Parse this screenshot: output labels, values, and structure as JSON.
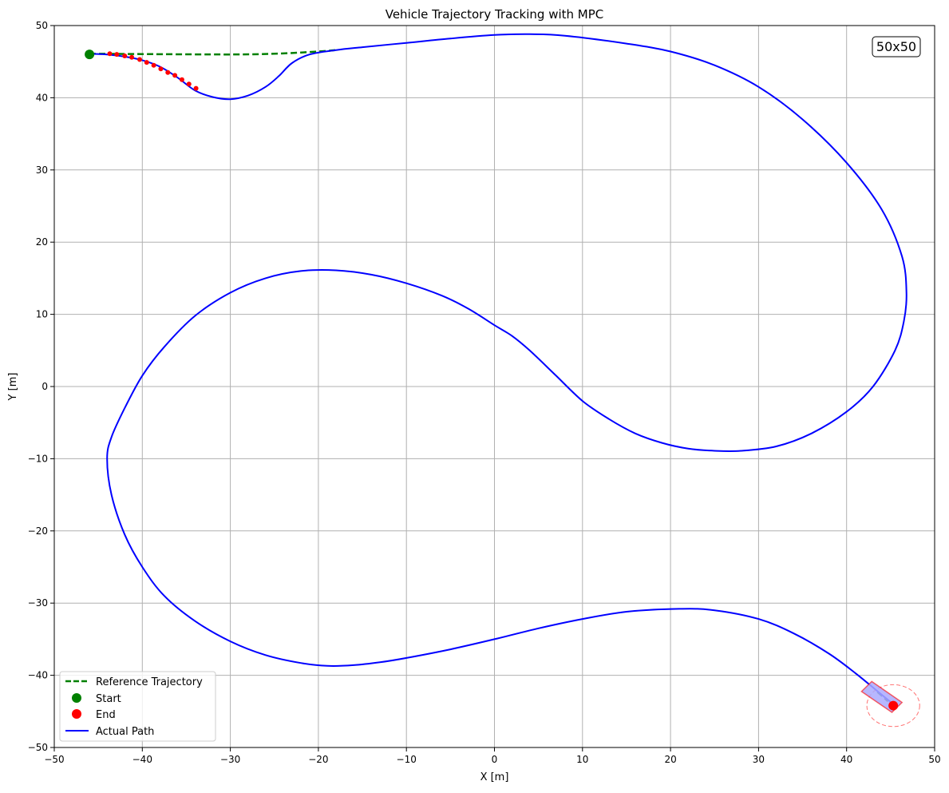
{
  "chart_data": {
    "type": "line",
    "title": "Vehicle Trajectory Tracking with MPC",
    "xlabel": "X [m]",
    "ylabel": "Y [m]",
    "xlim": [
      -50,
      50
    ],
    "ylim": [
      -50,
      50
    ],
    "x_ticks": [
      -50,
      -40,
      -30,
      -20,
      -10,
      0,
      10,
      20,
      30,
      40,
      50
    ],
    "y_ticks": [
      -50,
      -40,
      -30,
      -20,
      -10,
      0,
      10,
      20,
      30,
      40,
      50
    ],
    "grid": true,
    "annotation": "50x50",
    "legend_position": "lower-left",
    "legend": [
      {
        "label": "Reference Trajectory",
        "style": "dashed-line",
        "color": "#008000"
      },
      {
        "label": "Start",
        "style": "marker",
        "color": "#008000"
      },
      {
        "label": "End",
        "style": "marker",
        "color": "#ff0000"
      },
      {
        "label": "Actual Path",
        "style": "line",
        "color": "#0000ff"
      }
    ],
    "series": [
      {
        "name": "Reference Trajectory",
        "color": "#008000",
        "x": [
          -46,
          -40,
          -30,
          -25,
          -20,
          -18
        ],
        "y": [
          46.1,
          46.05,
          46.0,
          46.1,
          46.4,
          46.6
        ]
      },
      {
        "name": "Actual Path",
        "color": "#0000ff",
        "x": [
          -46,
          -44,
          -42,
          -40,
          -38,
          -36,
          -34,
          -32,
          -30,
          -28,
          -26,
          -24.5,
          -23,
          -21,
          -18,
          -15,
          -10,
          -5,
          0,
          4,
          8,
          15,
          20,
          25,
          30,
          35,
          40,
          44,
          46.3,
          46.8,
          46.5,
          45.5,
          43,
          40,
          36,
          32,
          28,
          25,
          22,
          19,
          16,
          13,
          10,
          7,
          4,
          2,
          0,
          -3,
          -6,
          -10,
          -14,
          -18,
          -22,
          -26,
          -30,
          -34,
          -37.5,
          -40,
          -42,
          -43.5,
          -44,
          -43.5,
          -42,
          -40,
          -37.5,
          -34,
          -30,
          -26,
          -22,
          -19,
          -16,
          -13,
          -10,
          -5,
          0,
          5,
          10,
          15,
          21,
          25,
          30,
          34,
          38,
          41,
          43.5,
          45.3
        ],
        "y": [
          46.1,
          46.0,
          45.7,
          45.2,
          44.3,
          42.8,
          41.0,
          40.1,
          39.8,
          40.3,
          41.5,
          43.0,
          44.8,
          46.0,
          46.6,
          47.0,
          47.6,
          48.2,
          48.7,
          48.8,
          48.6,
          47.5,
          46.4,
          44.5,
          41.5,
          37.0,
          31.0,
          24.5,
          18.0,
          13.0,
          9.0,
          5.0,
          0.0,
          -3.5,
          -6.5,
          -8.3,
          -8.9,
          -8.9,
          -8.6,
          -7.8,
          -6.5,
          -4.5,
          -2.0,
          1.5,
          5.0,
          7.0,
          8.5,
          10.8,
          12.6,
          14.3,
          15.5,
          16.1,
          16.0,
          15.0,
          13.0,
          9.8,
          5.5,
          1.5,
          -3.0,
          -7.0,
          -10.0,
          -15.0,
          -20.5,
          -25.0,
          -29.0,
          -32.5,
          -35.3,
          -37.2,
          -38.3,
          -38.7,
          -38.6,
          -38.2,
          -37.6,
          -36.4,
          -35.0,
          -33.5,
          -32.2,
          -31.2,
          -30.8,
          -31.0,
          -32.2,
          -34.2,
          -37.0,
          -39.7,
          -42.2,
          -44.0
        ]
      }
    ],
    "predicted_points": {
      "color": "#ff0000",
      "x": [
        -43.7,
        -42.9,
        -42.0,
        -41.2,
        -40.3,
        -39.5,
        -38.7,
        -37.9,
        -37.1,
        -36.3,
        -35.5,
        -34.7,
        -33.9
      ],
      "y": [
        46.1,
        46.0,
        45.8,
        45.6,
        45.3,
        44.9,
        44.5,
        44.0,
        43.5,
        43.1,
        42.5,
        41.9,
        41.3
      ]
    },
    "start_point": {
      "x": -46,
      "y": 46
    },
    "end_point": {
      "x": 45.3,
      "y": -44.2
    },
    "vehicle": {
      "x": 44.0,
      "y": -43.0,
      "heading_deg": -40,
      "length": 4.5,
      "width": 1.8,
      "fill": "#aaaaff",
      "edge": "#ff0000",
      "reference_tail": {
        "x": [
          43.5,
          44.7
        ],
        "y": [
          -42.3,
          -43.6
        ]
      }
    },
    "safety_circle": {
      "x": 45.3,
      "y": -44.2,
      "rx": 3.0,
      "ry": 2.9,
      "color": "#ff0000"
    }
  }
}
